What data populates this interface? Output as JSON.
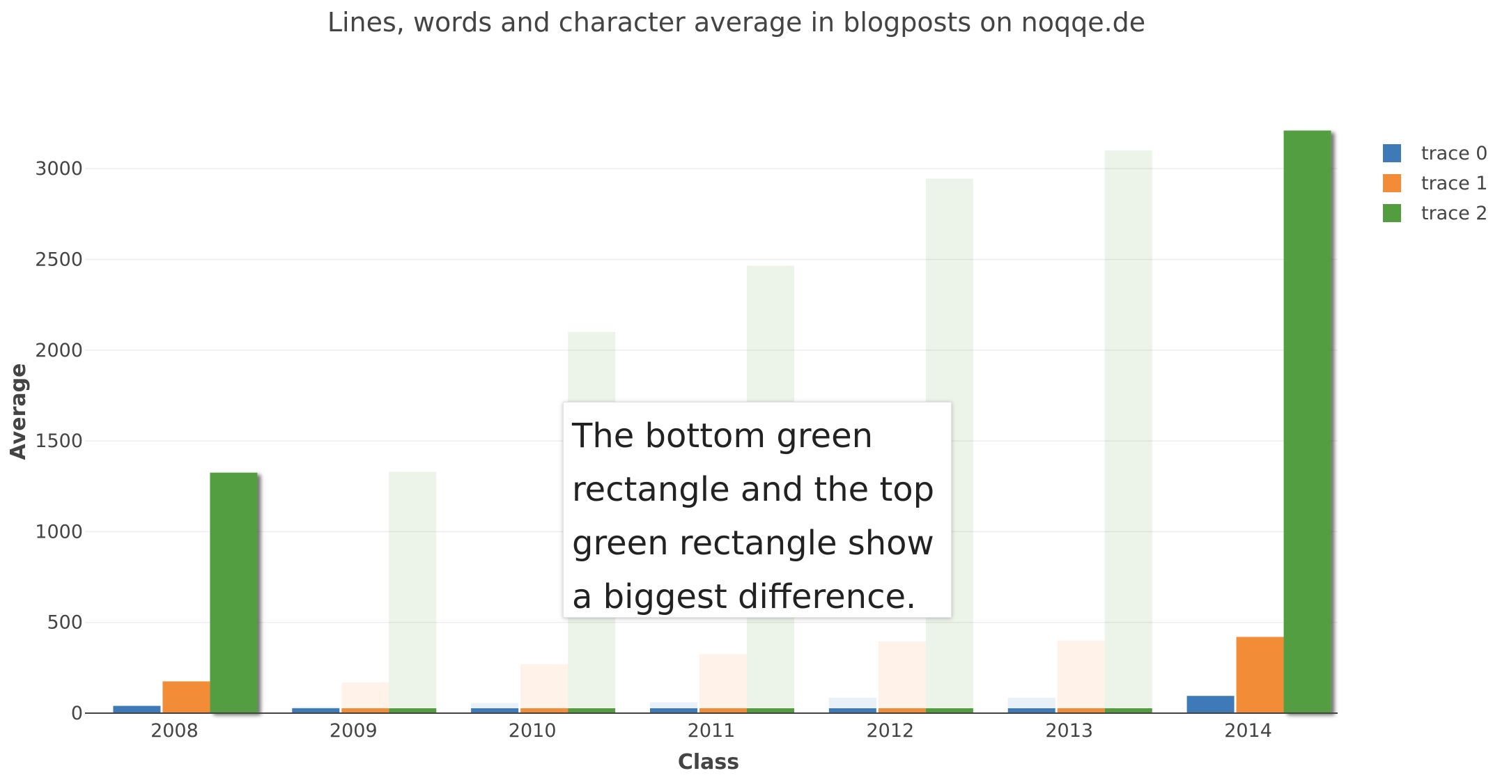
{
  "chart_data": {
    "type": "bar",
    "title": "Lines, words and character average in blogposts on noqqe.de",
    "xlabel": "Class",
    "ylabel": "Average",
    "categories": [
      "2008",
      "2009",
      "2010",
      "2011",
      "2012",
      "2013",
      "2014"
    ],
    "ylim": [
      0,
      3300
    ],
    "yticks": [
      0,
      500,
      1000,
      1500,
      2000,
      2500,
      3000
    ],
    "grid": true,
    "legend_position": "top-right",
    "series": [
      {
        "name": "trace 0",
        "color": "#3d7ab7",
        "values": [
          40,
          35,
          55,
          60,
          85,
          85,
          95
        ]
      },
      {
        "name": "trace 1",
        "color": "#f28c36",
        "values": [
          175,
          170,
          270,
          325,
          395,
          400,
          420
        ]
      },
      {
        "name": "trace 2",
        "color": "#529e3f",
        "values": [
          1325,
          1330,
          2100,
          2465,
          2945,
          3100,
          3210
        ]
      }
    ],
    "highlighted": [
      {
        "series": "trace 2",
        "category": "2008"
      },
      {
        "series": "trace 2",
        "category": "2014"
      }
    ],
    "annotation": "The bottom green rectangle and the top green rectangle show a biggest difference."
  }
}
